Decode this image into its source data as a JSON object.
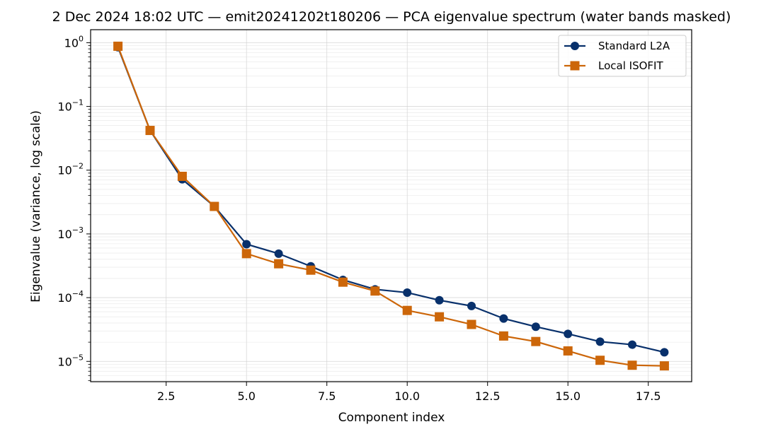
{
  "chart_data": {
    "type": "line",
    "title": "2 Dec 2024 18:02 UTC — emit20241202t180206 — PCA eigenvalue spectrum (water bands masked)",
    "xlabel": "Component index",
    "ylabel": "Eigenvalue (variance, log scale)",
    "y_scale": "log",
    "xlim": [
      0.15,
      18.85
    ],
    "ylim": [
      4.8e-06,
      1.6
    ],
    "x_ticks": [
      2.5,
      5.0,
      7.5,
      10.0,
      12.5,
      15.0,
      17.5
    ],
    "x_tick_labels": [
      "2.5",
      "5.0",
      "7.5",
      "10.0",
      "12.5",
      "15.0",
      "17.5"
    ],
    "y_ticks": [
      {
        "base": "10",
        "exp": "0",
        "value": 1
      },
      {
        "base": "10",
        "exp": "−1",
        "value": 0.1
      },
      {
        "base": "10",
        "exp": "−2",
        "value": 0.01
      },
      {
        "base": "10",
        "exp": "−3",
        "value": 0.001
      },
      {
        "base": "10",
        "exp": "−4",
        "value": 0.0001
      },
      {
        "base": "10",
        "exp": "−5",
        "value": 1e-05
      }
    ],
    "grid": true,
    "legend_position": "top-right",
    "x": [
      1,
      2,
      3,
      4,
      5,
      6,
      7,
      8,
      9,
      10,
      11,
      12,
      13,
      14,
      15,
      16,
      17,
      18
    ],
    "series": [
      {
        "name": "Standard L2A",
        "color": "#08306b",
        "marker": "circle",
        "values": [
          0.85,
          0.042,
          0.0072,
          0.0027,
          0.00069,
          0.00049,
          0.00031,
          0.00019,
          0.000135,
          0.00012,
          9.1e-05,
          7.4e-05,
          4.7e-05,
          3.5e-05,
          2.7e-05,
          2.04e-05,
          1.83e-05,
          1.39e-05
        ]
      },
      {
        "name": "Local ISOFIT",
        "color": "#cc6609",
        "marker": "square",
        "values": [
          0.88,
          0.042,
          0.008,
          0.0027,
          0.00049,
          0.00034,
          0.00027,
          0.000175,
          0.000127,
          6.3e-05,
          5e-05,
          3.8e-05,
          2.5e-05,
          2.05e-05,
          1.46e-05,
          1.04e-05,
          8.7e-06,
          8.5e-06
        ]
      }
    ]
  }
}
